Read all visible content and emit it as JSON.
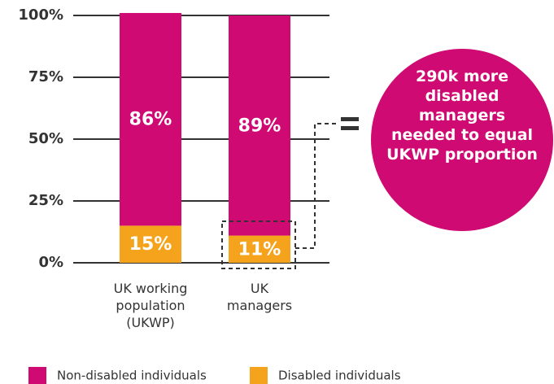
{
  "chart_data": {
    "type": "stacked_bar",
    "categories": [
      "UK working population (UKWP)",
      "UK managers"
    ],
    "series": [
      {
        "name": "Non-disabled individuals",
        "color": "#cf0a72",
        "values": [
          86,
          89
        ],
        "value_labels": [
          "86%",
          "89%"
        ]
      },
      {
        "name": "Disabled individuals",
        "color": "#f5a31c",
        "values": [
          15,
          11
        ],
        "value_labels": [
          "15%",
          "11%"
        ]
      }
    ],
    "ylim": [
      0,
      100
    ],
    "yticks": [
      {
        "value": 0,
        "label": "0%"
      },
      {
        "value": 25,
        "label": "25%"
      },
      {
        "value": 50,
        "label": "50%"
      },
      {
        "value": 75,
        "label": "75%"
      },
      {
        "value": 100,
        "label": "100%"
      }
    ],
    "grid": true,
    "annotation": "290k more disabled managers needed to equal UKWP proportion"
  }
}
